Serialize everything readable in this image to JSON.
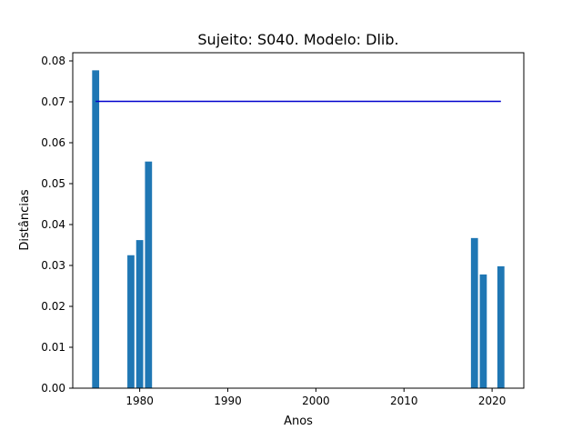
{
  "chart_data": {
    "type": "bar",
    "title": "Sujeito: S040. Modelo: Dlib.",
    "xlabel": "Anos",
    "ylabel": "Distâncias",
    "xlim": [
      1972.4,
      2023.6
    ],
    "ylim": [
      0,
      0.082
    ],
    "xticks": [
      1980,
      1990,
      2000,
      2010,
      2020
    ],
    "xtick_labels": [
      "1980",
      "1990",
      "2000",
      "2010",
      "2020"
    ],
    "yticks": [
      0,
      0.01,
      0.02,
      0.03,
      0.04,
      0.05,
      0.06,
      0.07,
      0.08
    ],
    "ytick_labels": [
      "0.00",
      "0.01",
      "0.02",
      "0.03",
      "0.04",
      "0.05",
      "0.06",
      "0.07",
      "0.08"
    ],
    "bar_width": 0.8,
    "bar_color": "#1f77b4",
    "series": [
      {
        "x": [
          1975,
          1979,
          1980,
          1981,
          2018,
          2019,
          2021
        ],
        "values": [
          0.0777,
          0.0325,
          0.0362,
          0.0554,
          0.0367,
          0.0278,
          0.0298
        ]
      }
    ],
    "threshold_line": {
      "y": 0.0701,
      "x_start": 1975,
      "x_end": 2021,
      "color": "#0000cc"
    },
    "grid": false
  }
}
